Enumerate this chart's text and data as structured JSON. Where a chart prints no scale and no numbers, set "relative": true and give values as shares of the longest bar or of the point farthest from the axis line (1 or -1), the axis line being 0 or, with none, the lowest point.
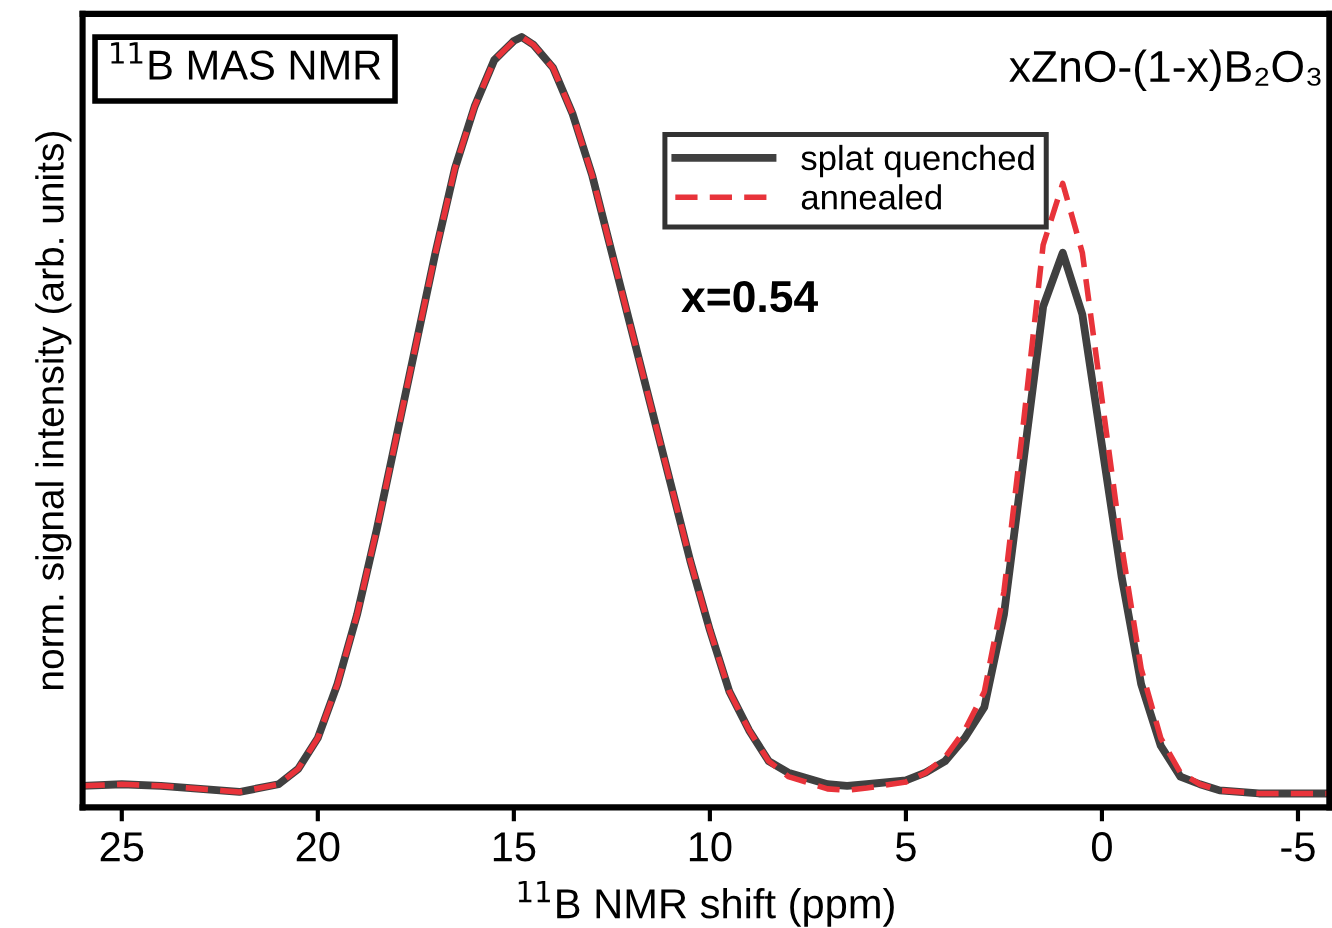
{
  "chart_data": {
    "type": "line",
    "relative": true,
    "xlabel": "$^{11}$B NMR shift (ppm)",
    "ylabel": "norm. signal intensity (arb. units)",
    "xlim": [
      26,
      -5.8
    ],
    "xticks": [
      25,
      20,
      15,
      10,
      5,
      0,
      -5
    ],
    "tick_labels": "x",
    "grid": false,
    "legend": "top",
    "annotations": [
      "$^{11}$B MAS NMR",
      "xZnO-(1-x)B₂O₃",
      "x=0.54"
    ],
    "x": [
      26,
      25,
      24,
      23,
      22,
      21,
      20.5,
      20,
      19.5,
      19,
      18.5,
      18,
      17.5,
      17,
      16.5,
      16,
      15.5,
      15,
      14.8,
      14.5,
      14,
      13.5,
      13,
      12.5,
      12,
      11.5,
      11,
      10.5,
      10,
      9.5,
      9,
      8.5,
      8,
      7,
      6.5,
      6,
      5,
      4.5,
      4,
      3.5,
      3,
      2.5,
      2,
      1.5,
      1,
      0.5,
      0,
      -0.5,
      -1,
      -1.5,
      -2,
      -2.5,
      -3,
      -4,
      -5,
      -5.8
    ],
    "series": [
      {
        "name": "splat quenched",
        "color": "#404040",
        "line_style": "solid",
        "values": [
          0.028,
          0.03,
          0.028,
          0.024,
          0.02,
          0.03,
          0.05,
          0.09,
          0.16,
          0.25,
          0.36,
          0.48,
          0.6,
          0.72,
          0.83,
          0.91,
          0.97,
          0.995,
          1.0,
          0.99,
          0.96,
          0.9,
          0.82,
          0.72,
          0.62,
          0.52,
          0.42,
          0.32,
          0.23,
          0.15,
          0.1,
          0.06,
          0.045,
          0.03,
          0.028,
          0.03,
          0.035,
          0.045,
          0.06,
          0.09,
          0.13,
          0.25,
          0.45,
          0.65,
          0.72,
          0.64,
          0.47,
          0.3,
          0.16,
          0.08,
          0.04,
          0.03,
          0.022,
          0.018,
          0.018,
          0.018
        ]
      },
      {
        "name": "annealed",
        "color": "#e8333a",
        "line_style": "dashed",
        "values": [
          0.028,
          0.03,
          0.028,
          0.024,
          0.02,
          0.03,
          0.05,
          0.09,
          0.16,
          0.25,
          0.36,
          0.48,
          0.6,
          0.72,
          0.83,
          0.91,
          0.97,
          0.995,
          1.0,
          0.99,
          0.96,
          0.9,
          0.82,
          0.72,
          0.62,
          0.52,
          0.42,
          0.32,
          0.23,
          0.15,
          0.1,
          0.06,
          0.04,
          0.024,
          0.022,
          0.025,
          0.033,
          0.045,
          0.065,
          0.1,
          0.15,
          0.28,
          0.5,
          0.73,
          0.81,
          0.72,
          0.53,
          0.34,
          0.18,
          0.09,
          0.045,
          0.03,
          0.022,
          0.018,
          0.018,
          0.018
        ]
      }
    ]
  }
}
